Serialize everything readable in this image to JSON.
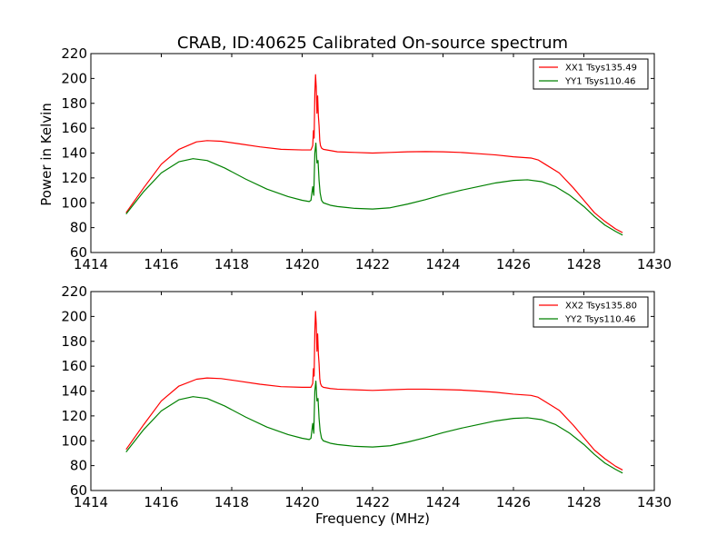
{
  "chart_data": [
    {
      "type": "line",
      "title": "CRAB, ID:40625 Calibrated On-source spectrum",
      "xlabel": "",
      "ylabel": "Power in Kelvin",
      "xlim": [
        1414,
        1430
      ],
      "ylim": [
        60,
        220
      ],
      "xticks": [
        "1414",
        "1416",
        "1418",
        "1420",
        "1422",
        "1424",
        "1426",
        "1428",
        "1430"
      ],
      "yticks": [
        "60",
        "80",
        "100",
        "120",
        "140",
        "160",
        "180",
        "200",
        "220"
      ],
      "legend_position": "top-right",
      "series": [
        {
          "name": "XX1 Tsys135.49",
          "color": "#ff0000",
          "x": [
            1415.0,
            1415.5,
            1416.0,
            1416.5,
            1417.0,
            1417.3,
            1417.7,
            1418.2,
            1418.8,
            1419.4,
            1420.0,
            1420.25,
            1420.3,
            1420.32,
            1420.34,
            1420.36,
            1420.38,
            1420.4,
            1420.42,
            1420.44,
            1420.46,
            1420.48,
            1420.5,
            1420.52,
            1420.55,
            1420.6,
            1420.8,
            1421.0,
            1421.5,
            1422.0,
            1422.5,
            1423.0,
            1423.5,
            1424.0,
            1424.5,
            1425.0,
            1425.5,
            1426.0,
            1426.5,
            1426.7,
            1426.9,
            1427.3,
            1427.7,
            1428.0,
            1428.3,
            1428.6,
            1428.9,
            1429.1
          ],
          "y": [
            92,
            112,
            131,
            143,
            149,
            150,
            149.5,
            147.5,
            145,
            143,
            142.5,
            142.5,
            146,
            158,
            152,
            188,
            203,
            193,
            172,
            186,
            170,
            162,
            150,
            146,
            144,
            143,
            142,
            141,
            140.5,
            140,
            140.5,
            141,
            141.2,
            141,
            140.5,
            139.5,
            138.5,
            137,
            136,
            134.5,
            131,
            124,
            112,
            102,
            92,
            85,
            79,
            76
          ]
        },
        {
          "name": "YY1 Tsys110.46",
          "color": "#008000",
          "x": [
            1415.0,
            1415.5,
            1416.0,
            1416.5,
            1416.9,
            1417.3,
            1417.8,
            1418.4,
            1419.0,
            1419.6,
            1420.0,
            1420.2,
            1420.25,
            1420.3,
            1420.33,
            1420.36,
            1420.39,
            1420.42,
            1420.45,
            1420.48,
            1420.51,
            1420.55,
            1420.6,
            1420.8,
            1421.0,
            1421.5,
            1422.0,
            1422.5,
            1423.0,
            1423.5,
            1424.0,
            1424.5,
            1425.0,
            1425.5,
            1426.0,
            1426.4,
            1426.8,
            1427.2,
            1427.6,
            1428.0,
            1428.3,
            1428.6,
            1428.9,
            1429.1
          ],
          "y": [
            91,
            109,
            124,
            133,
            135.5,
            134,
            128,
            119,
            111,
            105,
            102,
            101,
            102,
            113,
            106,
            140,
            148,
            132,
            134,
            118,
            108,
            102,
            100,
            98,
            97,
            95.5,
            95,
            96,
            99,
            102.5,
            106.5,
            110,
            113,
            116,
            118,
            118.5,
            117,
            113,
            106,
            97,
            89,
            82,
            77,
            74
          ]
        }
      ]
    },
    {
      "type": "line",
      "title": "",
      "xlabel": "Frequency (MHz)",
      "ylabel": "",
      "xlim": [
        1414,
        1430
      ],
      "ylim": [
        60,
        220
      ],
      "xticks": [
        "1414",
        "1416",
        "1418",
        "1420",
        "1422",
        "1424",
        "1426",
        "1428",
        "1430"
      ],
      "yticks": [
        "60",
        "80",
        "100",
        "120",
        "140",
        "160",
        "180",
        "200",
        "220"
      ],
      "legend_position": "top-right",
      "series": [
        {
          "name": "XX2 Tsys135.80",
          "color": "#ff0000",
          "x": [
            1415.0,
            1415.5,
            1416.0,
            1416.5,
            1417.0,
            1417.3,
            1417.7,
            1418.2,
            1418.8,
            1419.4,
            1420.0,
            1420.25,
            1420.3,
            1420.32,
            1420.34,
            1420.36,
            1420.38,
            1420.4,
            1420.42,
            1420.44,
            1420.46,
            1420.48,
            1420.5,
            1420.52,
            1420.55,
            1420.6,
            1420.8,
            1421.0,
            1421.5,
            1422.0,
            1422.5,
            1423.0,
            1423.5,
            1424.0,
            1424.5,
            1425.0,
            1425.5,
            1426.0,
            1426.5,
            1426.7,
            1426.9,
            1427.3,
            1427.7,
            1428.0,
            1428.3,
            1428.6,
            1428.9,
            1429.1
          ],
          "y": [
            93,
            113,
            132,
            144,
            149.5,
            150.5,
            150,
            148,
            145.5,
            143.5,
            143,
            143,
            146,
            158,
            152,
            188,
            204,
            194,
            172,
            186,
            170,
            162,
            150,
            146,
            144,
            143,
            142,
            141.5,
            141,
            140.5,
            141,
            141.5,
            141.5,
            141.2,
            140.8,
            140,
            139,
            137.5,
            136.5,
            135,
            131.5,
            124.5,
            112.5,
            102.5,
            92.5,
            85.5,
            79.5,
            76.5
          ]
        },
        {
          "name": "YY2 Tsys110.46",
          "color": "#008000",
          "x": [
            1415.0,
            1415.5,
            1416.0,
            1416.5,
            1416.9,
            1417.3,
            1417.8,
            1418.4,
            1419.0,
            1419.6,
            1420.0,
            1420.2,
            1420.25,
            1420.3,
            1420.33,
            1420.36,
            1420.39,
            1420.42,
            1420.45,
            1420.48,
            1420.51,
            1420.55,
            1420.6,
            1420.8,
            1421.0,
            1421.5,
            1422.0,
            1422.5,
            1423.0,
            1423.5,
            1424.0,
            1424.5,
            1425.0,
            1425.5,
            1426.0,
            1426.4,
            1426.8,
            1427.2,
            1427.6,
            1428.0,
            1428.3,
            1428.6,
            1428.9,
            1429.1
          ],
          "y": [
            91,
            109,
            124,
            133,
            135.5,
            134,
            128,
            119,
            111,
            105,
            102,
            101,
            102,
            114,
            106,
            140,
            148,
            132,
            134,
            118,
            108,
            102,
            100,
            98,
            97,
            95.5,
            95,
            96,
            99,
            102.5,
            106.5,
            110,
            113,
            116,
            118,
            118.5,
            117,
            113,
            106,
            97,
            89,
            82,
            77,
            74
          ]
        }
      ]
    }
  ]
}
